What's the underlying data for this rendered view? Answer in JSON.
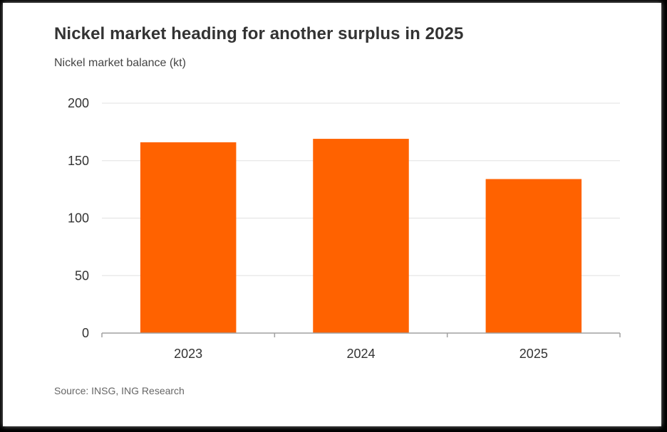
{
  "chart_data": {
    "type": "bar",
    "title": "Nickel market heading for another surplus in 2025",
    "subtitle": "Nickel market balance (kt)",
    "source": "Source: INSG, ING Research",
    "categories": [
      "2023",
      "2024",
      "2025"
    ],
    "values": [
      166,
      169,
      134
    ],
    "ylim": [
      0,
      200
    ],
    "yticks": [
      0,
      50,
      100,
      150,
      200
    ],
    "xlabel": "",
    "ylabel": "",
    "grid": true,
    "bar_color": "#FF6200",
    "grid_color": "#E6E6E6",
    "axis_color": "#A0A0A0"
  }
}
